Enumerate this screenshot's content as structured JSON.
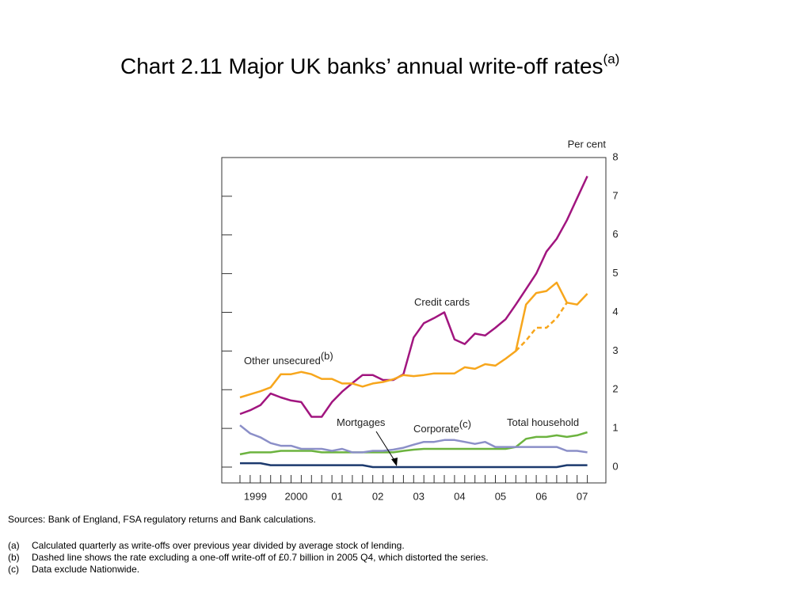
{
  "chart_data": {
    "type": "line",
    "title": "Chart 2.11  Major UK banks’ annual write-off rates",
    "title_superscript": "(a)",
    "y_axis_label": "Per cent",
    "categories": [
      "1999",
      null,
      null,
      null,
      "2000",
      null,
      null,
      null,
      "01",
      null,
      null,
      null,
      "02",
      null,
      null,
      null,
      "03",
      null,
      null,
      null,
      "04",
      null,
      null,
      null,
      "05",
      null,
      null,
      null,
      "06",
      null,
      null,
      null,
      "07",
      null,
      null
    ],
    "ylim": [
      0,
      8
    ],
    "yticks": [
      0,
      1,
      2,
      3,
      4,
      5,
      6,
      7,
      8
    ],
    "series": [
      {
        "name": "Credit cards",
        "color": "#a1157f",
        "values": [
          1.37,
          1.47,
          1.6,
          1.9,
          1.8,
          1.72,
          1.68,
          1.3,
          1.3,
          1.68,
          1.95,
          2.17,
          2.38,
          2.38,
          2.25,
          2.25,
          2.4,
          3.35,
          3.72,
          3.85,
          4.0,
          3.3,
          3.18,
          3.45,
          3.4,
          3.6,
          3.82,
          4.2,
          4.6,
          5.0,
          5.57,
          5.9,
          6.38,
          6.95,
          7.52
        ]
      },
      {
        "name": "Other unsecured",
        "superscript": "(b)",
        "color": "#f7a61c",
        "values": [
          1.8,
          1.88,
          1.96,
          2.06,
          2.4,
          2.4,
          2.46,
          2.4,
          2.28,
          2.28,
          2.16,
          2.16,
          2.08,
          2.16,
          2.2,
          2.27,
          2.38,
          2.35,
          2.38,
          2.42,
          2.42,
          2.42,
          2.58,
          2.54,
          2.66,
          2.62,
          2.8,
          3.0,
          4.2,
          4.5,
          4.55,
          4.77,
          4.25,
          4.2,
          4.48
        ]
      },
      {
        "color": "#f7a61c",
        "dashed": true,
        "values": [
          null,
          null,
          null,
          null,
          null,
          null,
          null,
          null,
          null,
          null,
          null,
          null,
          null,
          null,
          null,
          null,
          null,
          null,
          null,
          null,
          null,
          null,
          null,
          null,
          null,
          null,
          null,
          3.0,
          3.27,
          3.6,
          3.6,
          3.85,
          4.25,
          null,
          null
        ]
      },
      {
        "name": "Total household",
        "color": "#6cb33f",
        "values": [
          0.33,
          0.38,
          0.38,
          0.38,
          0.42,
          0.42,
          0.42,
          0.42,
          0.38,
          0.38,
          0.38,
          0.38,
          0.38,
          0.38,
          0.38,
          0.38,
          0.42,
          0.45,
          0.47,
          0.47,
          0.47,
          0.47,
          0.47,
          0.47,
          0.47,
          0.47,
          0.47,
          0.52,
          0.73,
          0.78,
          0.78,
          0.82,
          0.78,
          0.82,
          0.9
        ]
      },
      {
        "name": "Corporate",
        "superscript": "(c)",
        "color": "#8b8fc8",
        "values": [
          1.08,
          0.87,
          0.77,
          0.62,
          0.55,
          0.55,
          0.47,
          0.47,
          0.47,
          0.42,
          0.47,
          0.38,
          0.38,
          0.42,
          0.42,
          0.45,
          0.5,
          0.58,
          0.65,
          0.65,
          0.7,
          0.7,
          0.65,
          0.6,
          0.65,
          0.52,
          0.52,
          0.52,
          0.52,
          0.52,
          0.52,
          0.52,
          0.42,
          0.42,
          0.38
        ]
      },
      {
        "name": "Mortgages",
        "color": "#1c3a6e",
        "values": [
          0.1,
          0.1,
          0.1,
          0.05,
          0.05,
          0.05,
          0.05,
          0.05,
          0.05,
          0.05,
          0.05,
          0.05,
          0.05,
          0,
          0,
          0,
          0,
          0,
          0,
          0,
          0,
          0,
          0,
          0,
          0,
          0,
          0,
          0,
          0,
          0,
          0,
          0,
          0.05,
          0.05,
          0.05
        ]
      }
    ]
  },
  "sources": "Sources:  Bank of England, FSA regulatory returns and Bank calculations.",
  "notes": [
    {
      "marker": "(a)",
      "text": "Calculated quarterly as write-offs over previous year divided by average stock of lending."
    },
    {
      "marker": "(b)",
      "text": "Dashed line shows the rate excluding a one-off write-off of £0.7 billion in 2005 Q4, which distorted the series."
    },
    {
      "marker": "(c)",
      "text": "Data exclude Nationwide."
    }
  ]
}
